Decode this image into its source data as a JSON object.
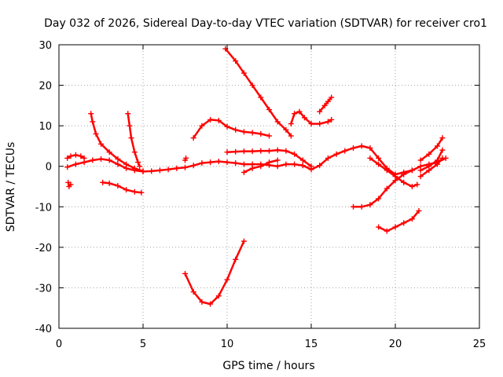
{
  "chart_data": {
    "type": "scatter",
    "title": "Day 032 of 2026, Sidereal Day-to-day VTEC variation (SDTVAR) for receiver cro1",
    "xlabel": "GPS time / hours",
    "ylabel": "SDTVAR / TECUs",
    "xlim": [
      0,
      25
    ],
    "ylim": [
      -40,
      30
    ],
    "xticks": [
      0,
      5,
      10,
      15,
      20,
      25
    ],
    "yticks": [
      -40,
      -30,
      -20,
      -10,
      0,
      10,
      20,
      30
    ],
    "grid": true,
    "marker": "plus",
    "color": "#ff0000",
    "series": [
      {
        "x": [
          0.5,
          1.0,
          1.5,
          2.0,
          2.5,
          3.0,
          3.5,
          4.0,
          4.5,
          5.0,
          5.5,
          6.0,
          6.5,
          7.0,
          7.5,
          8.0,
          8.5,
          9.0,
          9.5,
          10.0,
          10.5,
          11.0,
          11.5,
          12.0,
          12.5,
          13.0,
          13.5,
          14.0,
          14.5,
          15.0,
          15.5,
          16.0,
          16.5,
          17.0,
          17.5,
          18.0,
          18.5,
          19.0,
          19.5,
          20.0,
          20.5,
          21.0,
          21.5,
          22.0,
          22.5,
          23.0
        ],
        "y": [
          -0.2,
          0.5,
          1.0,
          1.5,
          1.8,
          1.5,
          0.5,
          -0.5,
          -1.0,
          -1.3,
          -1.2,
          -1.0,
          -0.8,
          -0.5,
          -0.3,
          0.2,
          0.8,
          1.0,
          1.2,
          1.0,
          0.8,
          0.5,
          0.5,
          0.5,
          0.3,
          0.0,
          0.5,
          0.5,
          0.2,
          -0.8,
          0.2,
          2.0,
          3.0,
          3.8,
          4.5,
          5.0,
          4.5,
          2.0,
          -0.5,
          -2.0,
          -1.5,
          -1.0,
          0.0,
          0.5,
          1.0,
          2.0
        ]
      },
      {
        "x": [
          0.5,
          0.7,
          1.0,
          1.3,
          1.5
        ],
        "y": [
          2.0,
          2.5,
          2.8,
          2.5,
          2.0
        ]
      },
      {
        "x": [
          0.55,
          0.6,
          0.7
        ],
        "y": [
          -4.0,
          -5.0,
          -4.5
        ]
      },
      {
        "x": [
          1.9,
          2.0,
          2.2,
          2.5,
          3.0,
          3.5,
          4.0,
          4.5,
          5.0
        ],
        "y": [
          13.0,
          11.0,
          8.0,
          5.5,
          3.5,
          1.8,
          0.5,
          -0.5,
          -1.2
        ]
      },
      {
        "x": [
          4.1,
          4.2,
          4.3,
          4.5,
          4.7,
          4.8
        ],
        "y": [
          13.0,
          10.0,
          7.0,
          3.5,
          1.0,
          0.0
        ]
      },
      {
        "x": [
          2.6,
          3.0,
          3.5,
          4.0,
          4.5,
          4.9
        ],
        "y": [
          -4.0,
          -4.2,
          -4.8,
          -5.8,
          -6.3,
          -6.5
        ]
      },
      {
        "x": [
          8.0,
          8.5,
          9.0,
          9.5,
          10.0,
          10.5,
          11.0,
          11.5,
          12.0,
          12.5
        ],
        "y": [
          7.0,
          10.0,
          11.5,
          11.3,
          9.8,
          9.0,
          8.5,
          8.3,
          8.0,
          7.5
        ]
      },
      {
        "x": [
          10.0,
          10.5,
          11.0,
          11.5,
          12.0,
          12.5,
          13.0,
          13.5,
          14.0,
          14.5,
          15.0
        ],
        "y": [
          3.5,
          3.6,
          3.7,
          3.7,
          3.8,
          3.8,
          4.0,
          3.8,
          3.0,
          1.5,
          0.0
        ]
      },
      {
        "x": [
          9.9,
          10.5,
          11.0,
          11.5,
          12.0,
          12.5,
          13.0,
          13.5,
          13.8
        ],
        "y": [
          29.0,
          26.0,
          23.0,
          20.0,
          17.0,
          14.0,
          11.0,
          9.0,
          7.5
        ]
      },
      {
        "x": [
          13.8,
          14.0,
          14.3,
          14.6,
          15.0,
          15.5,
          16.0,
          16.2
        ],
        "y": [
          10.5,
          13.0,
          13.5,
          12.0,
          10.5,
          10.5,
          11.0,
          11.5
        ]
      },
      {
        "x": [
          15.5,
          15.8,
          16.0,
          16.2
        ],
        "y": [
          13.5,
          15.0,
          16.0,
          17.0
        ]
      },
      {
        "x": [
          7.5,
          8.0,
          8.5,
          9.0,
          9.5,
          10.0,
          10.5,
          11.0
        ],
        "y": [
          -26.5,
          -31.0,
          -33.5,
          -34.0,
          -32.0,
          -28.0,
          -23.0,
          -18.5
        ]
      },
      {
        "x": [
          11.0,
          11.5,
          12.0,
          12.5,
          13.0
        ],
        "y": [
          -1.5,
          -0.5,
          0.0,
          1.0,
          1.5
        ]
      },
      {
        "x": [
          7.5,
          7.55
        ],
        "y": [
          1.5,
          2.0
        ]
      },
      {
        "x": [
          17.5,
          18.0,
          18.5,
          19.0,
          19.5,
          20.0,
          20.5,
          21.0
        ],
        "y": [
          -10.0,
          -10.0,
          -9.5,
          -8.0,
          -5.5,
          -3.5,
          -2.0,
          -1.0
        ]
      },
      {
        "x": [
          19.0,
          19.5,
          20.0,
          20.5,
          21.0,
          21.4
        ],
        "y": [
          -15.0,
          -16.0,
          -15.0,
          -14.0,
          -13.0,
          -11.0
        ]
      },
      {
        "x": [
          18.5,
          19.0,
          19.5,
          20.0,
          20.5,
          21.0,
          21.3
        ],
        "y": [
          2.0,
          0.5,
          -1.0,
          -2.5,
          -4.0,
          -5.0,
          -4.5
        ]
      },
      {
        "x": [
          21.5,
          22.0,
          22.5,
          22.8
        ],
        "y": [
          -2.5,
          -1.0,
          0.5,
          2.0
        ]
      },
      {
        "x": [
          21.5,
          22.0,
          22.5,
          22.8
        ],
        "y": [
          1.5,
          3.0,
          5.0,
          7.0
        ]
      },
      {
        "x": [
          21.5,
          22.0,
          22.5,
          22.8
        ],
        "y": [
          -1.0,
          0.0,
          1.5,
          4.0
        ]
      }
    ]
  }
}
